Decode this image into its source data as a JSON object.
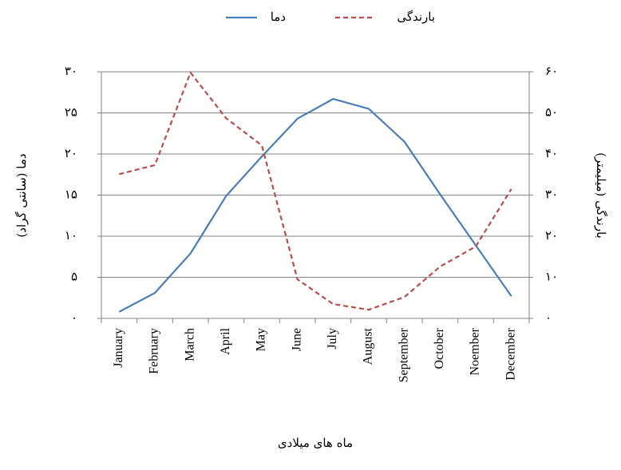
{
  "chart_data": {
    "type": "line",
    "x_label": "ماه های میلادی",
    "y_label": "دما (سانتی گراد)",
    "y2_label": "بارندگی (میلیمتر)",
    "categories": [
      "January",
      "February",
      "March",
      "April",
      "May",
      "June",
      "July",
      "August",
      "September",
      "October",
      "Noember",
      "December"
    ],
    "series": [
      {
        "name": "دما",
        "color": "#4a7ebb",
        "line_style": "solid",
        "values": [
          0.8,
          3.1,
          7.9,
          14.9,
          19.7,
          24.3,
          26.7,
          25.5,
          21.5,
          15.1,
          8.9,
          2.7
        ]
      },
      {
        "name": "بارندگی",
        "color": "#be4b48",
        "line_style": "dashed",
        "axis": "y2",
        "values": [
          35.1,
          37.3,
          59.8,
          48.7,
          42.1,
          9.5,
          3.5,
          2.1,
          5.2,
          12.6,
          17.5,
          31.5
        ]
      }
    ],
    "ylim": [
      0,
      30
    ],
    "yticks": [
      {
        "value": 0,
        "label": "۰"
      },
      {
        "value": 5,
        "label": "۵"
      },
      {
        "value": 10,
        "label": "۱۰"
      },
      {
        "value": 15,
        "label": "۱۵"
      },
      {
        "value": 20,
        "label": "۲۰"
      },
      {
        "value": 25,
        "label": "۲۵"
      },
      {
        "value": 30,
        "label": "۳۰"
      }
    ],
    "y2lim": [
      0,
      60
    ],
    "y2ticks": [
      {
        "value": 0,
        "label": "۰"
      },
      {
        "value": 10,
        "label": "۱۰"
      },
      {
        "value": 20,
        "label": "۲۰"
      },
      {
        "value": 30,
        "label": "۳۰"
      },
      {
        "value": 40,
        "label": "۴۰"
      },
      {
        "value": 50,
        "label": "۵۰"
      },
      {
        "value": 60,
        "label": "۶۰"
      }
    ],
    "grid": true,
    "legend": "top"
  }
}
